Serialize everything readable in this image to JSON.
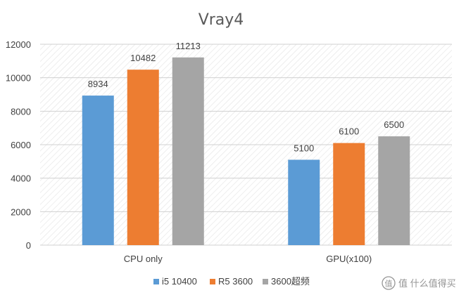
{
  "chart_data": {
    "type": "bar",
    "title": "Vray4",
    "categories": [
      "CPU only",
      "GPU(x100)"
    ],
    "series": [
      {
        "name": "i5 10400",
        "color": "#5b9bd5",
        "values": [
          8934,
          5100
        ]
      },
      {
        "name": "R5 3600",
        "color": "#ed7d31",
        "values": [
          10482,
          6100
        ]
      },
      {
        "name": "3600超频",
        "color": "#a5a5a5",
        "values": [
          11213,
          6500
        ]
      }
    ],
    "ylim": [
      0,
      12000
    ],
    "yticks": [
      0,
      2000,
      4000,
      6000,
      8000,
      10000,
      12000
    ],
    "grid": true,
    "legend_position": "bottom"
  },
  "watermark": {
    "text": "值 什么值得买",
    "icon": "smzdm-logo-icon"
  }
}
